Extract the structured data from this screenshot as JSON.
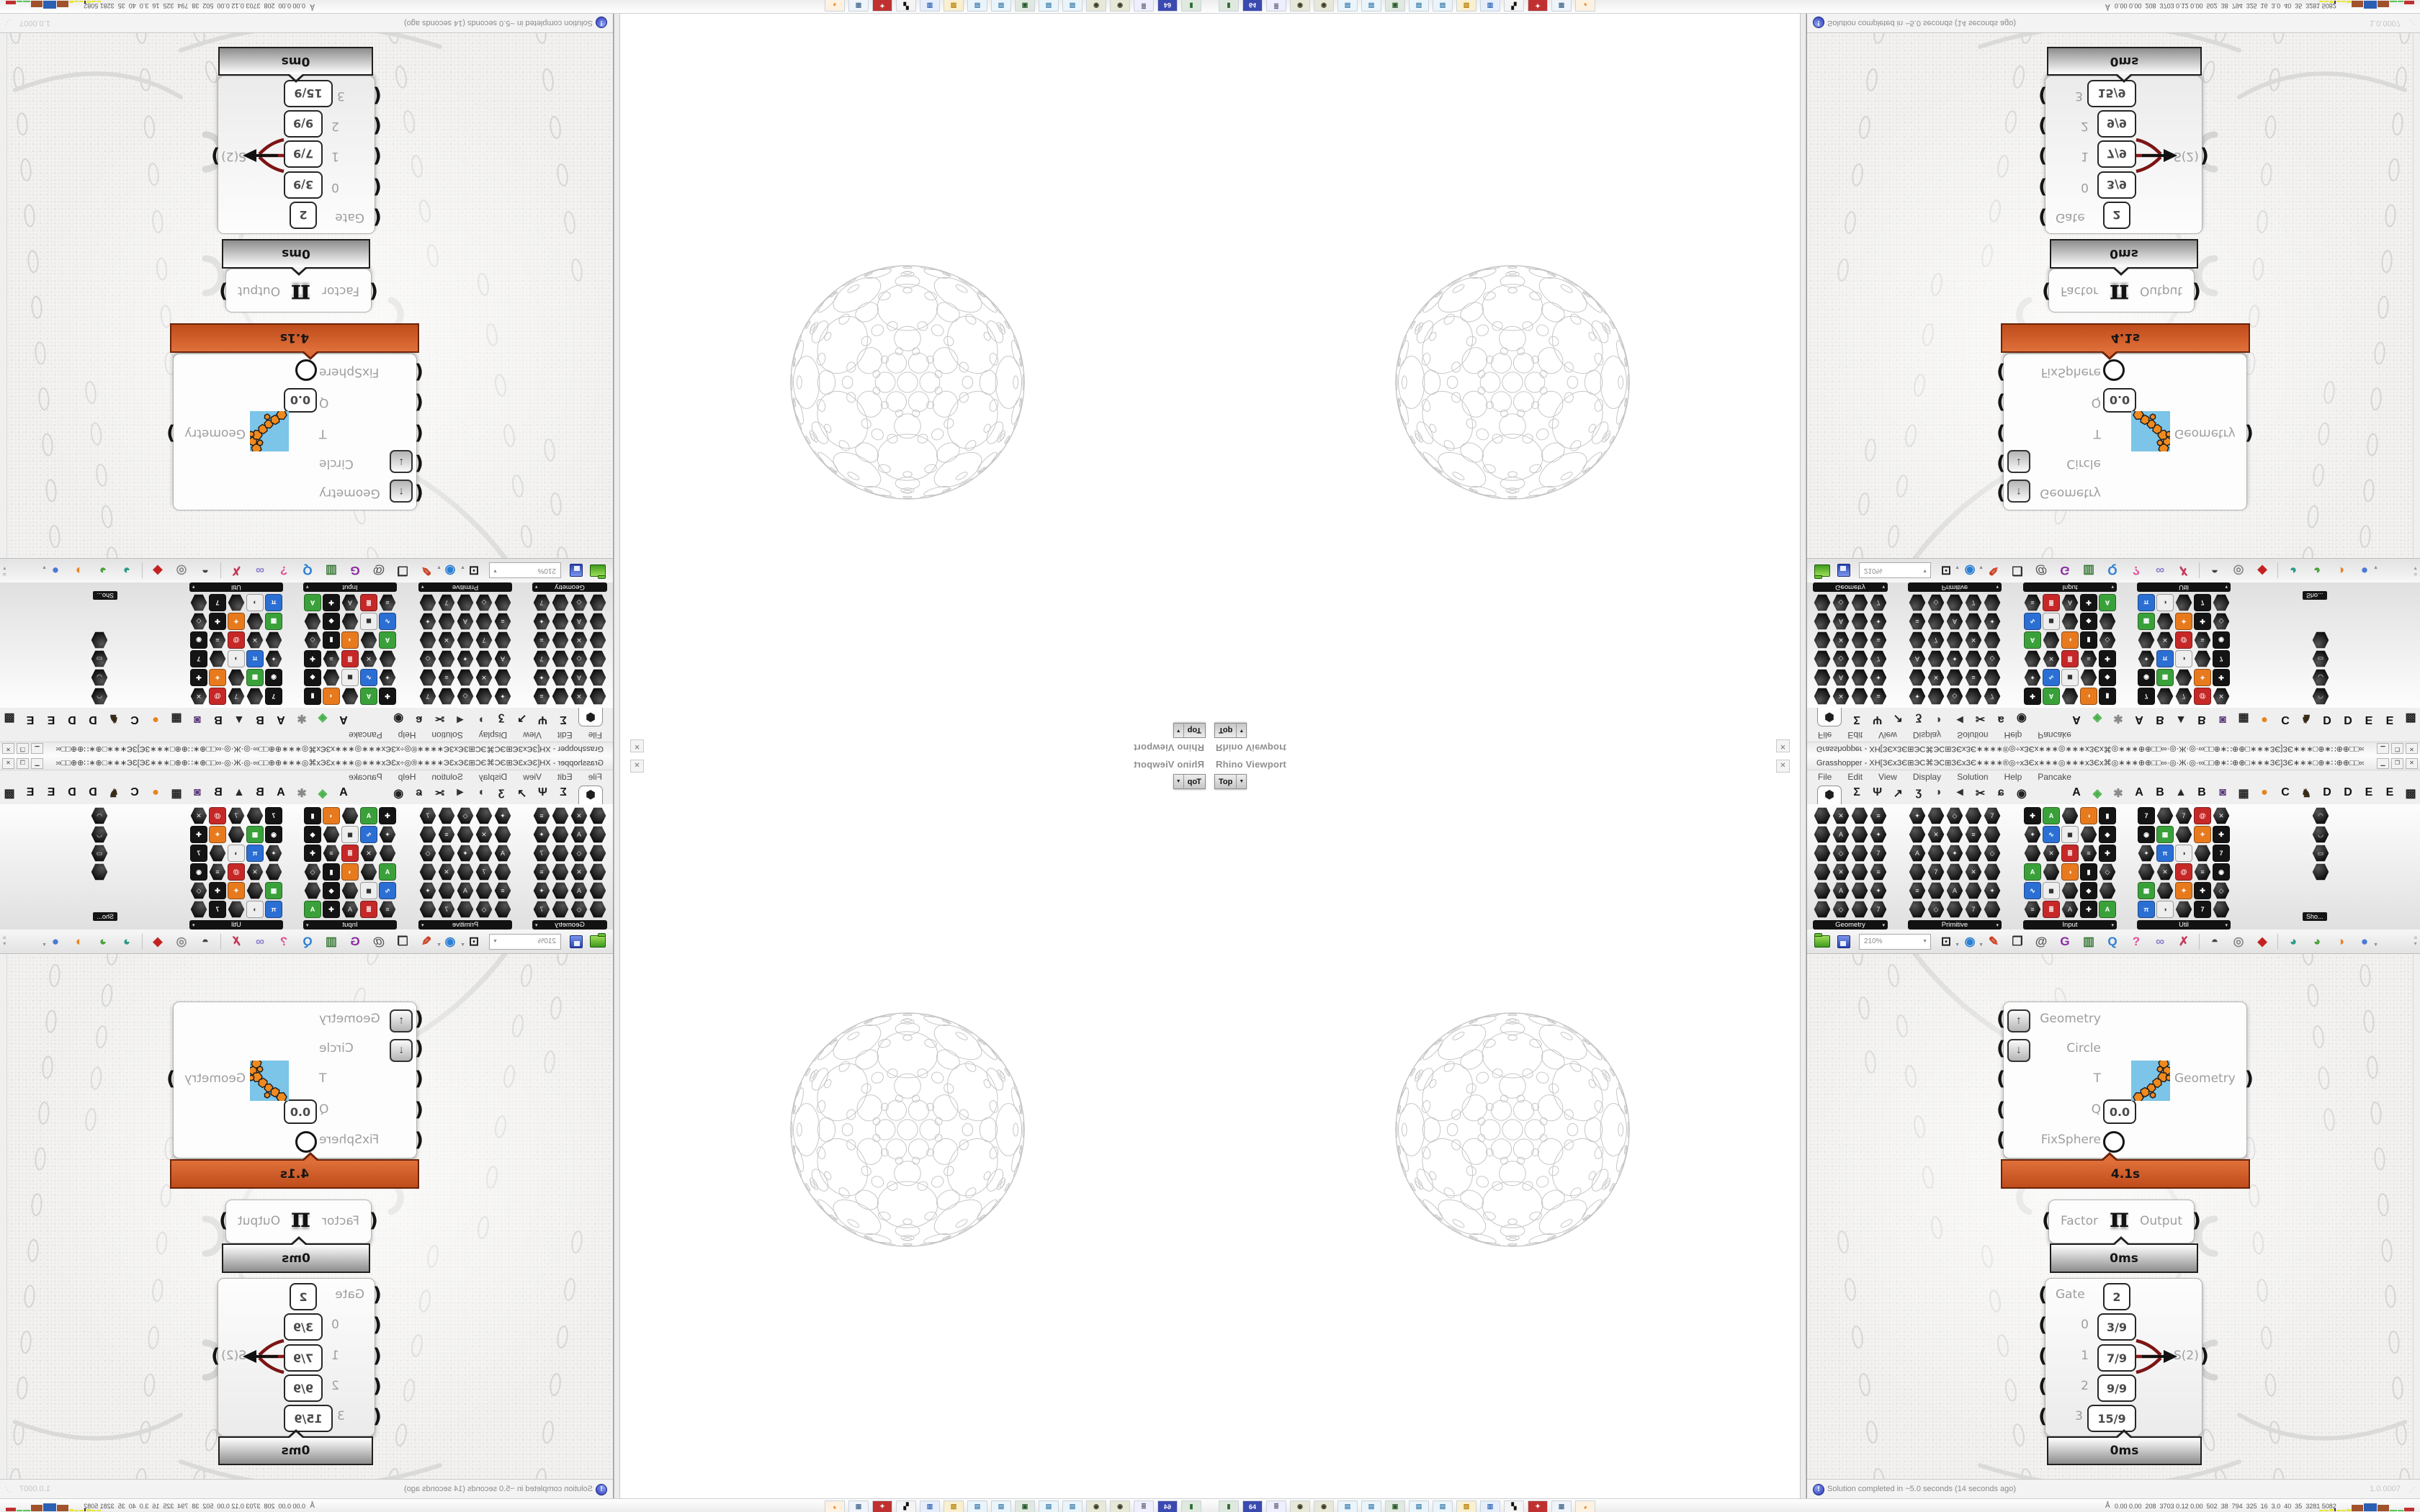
{
  "rhino": {
    "title": "Rhino Viewport",
    "projection_button": "Top",
    "close_glyph": "✕",
    "dropdown_glyph": "▼"
  },
  "grasshopper": {
    "title": "Grasshopper - XH[ЗЄxЗЄ⊞ЭC⌘ЭC⊞ЗЄxЗЄ∗∗∗∗®◎÷xЗЄx∗∗∗◎∗∗∗xЗЄx⌘◎∗∗∗⊕⊕□□∞·◎·Ж·◎·∞□□⊕∗∷⊕⊕□∗∗∗ЗЄ]ЗЄ∗∗∗□⊕∗∷⊕⊕□□∞·◎·Ж·◎·∞□□⊕∗®◎÷xЗЄx∗∗∗◎∗∗∗...",
    "window_buttons": {
      "minimize": "▁",
      "maximize": "❐",
      "close": "✕"
    },
    "menu": [
      "File",
      "Edit",
      "View",
      "Display",
      "Solution",
      "Help",
      "Pancake"
    ],
    "selected_tab_glyph": "⬢",
    "param_tab_icons": [
      {
        "name": "maths-tab-icon",
        "glyph": "Σ",
        "color": "#222"
      },
      {
        "name": "sets-tab-icon",
        "glyph": "Ψ",
        "color": "#222"
      },
      {
        "name": "vector-tab-icon",
        "glyph": "↗",
        "color": "#222"
      },
      {
        "name": "curve-tab-icon",
        "glyph": "ʒ",
        "color": "#222"
      },
      {
        "name": "surface-tab-icon",
        "glyph": "◗",
        "color": "#3b3b3b"
      },
      {
        "name": "mesh-tab-icon",
        "glyph": "◄",
        "color": "#333"
      },
      {
        "name": "intersect-tab-icon",
        "glyph": "✂",
        "color": "#222"
      },
      {
        "name": "transform-tab-icon",
        "glyph": "ɕ",
        "color": "#222"
      },
      {
        "name": "display-tab-icon",
        "glyph": "◉",
        "color": "#222"
      }
    ],
    "plugin_tab_icons": [
      {
        "name": "plugin-tab-a1",
        "glyph": "A",
        "color": "#111"
      },
      {
        "name": "plugin-tab-leaf",
        "glyph": "◈",
        "color": "#49b049"
      },
      {
        "name": "plugin-tab-flower",
        "glyph": "✱",
        "color": "#8a8a8a"
      },
      {
        "name": "plugin-tab-a2",
        "glyph": "A",
        "color": "#111"
      },
      {
        "name": "plugin-tab-b1",
        "glyph": "B",
        "color": "#111"
      },
      {
        "name": "plugin-tab-mountain",
        "glyph": "▲",
        "color": "#2a2a2a"
      },
      {
        "name": "plugin-tab-b2",
        "glyph": "B",
        "color": "#111"
      },
      {
        "name": "plugin-tab-shield",
        "glyph": "◙",
        "color": "#5a3a7a"
      },
      {
        "name": "plugin-tab-grid",
        "glyph": "▦",
        "color": "#222"
      },
      {
        "name": "plugin-tab-dot",
        "glyph": "●",
        "color": "#e8821e"
      },
      {
        "name": "plugin-tab-c",
        "glyph": "C",
        "color": "#111"
      },
      {
        "name": "plugin-tab-bird",
        "glyph": "♞",
        "color": "#3a2a1a"
      },
      {
        "name": "plugin-tab-d1",
        "glyph": "D",
        "color": "#111"
      },
      {
        "name": "plugin-tab-d2",
        "glyph": "D",
        "color": "#111"
      },
      {
        "name": "plugin-tab-e1",
        "glyph": "E",
        "color": "#111"
      },
      {
        "name": "plugin-tab-e2",
        "glyph": "E",
        "color": "#111"
      },
      {
        "name": "plugin-tab-checker",
        "glyph": "▩",
        "color": "#222"
      },
      {
        "name": "plugin-tab-e3",
        "glyph": "E",
        "color": "#111"
      }
    ],
    "palette": {
      "groups": [
        {
          "label": "Geometry",
          "cols": 4,
          "rows": 6,
          "style": "dark"
        },
        {
          "label": "Primitive",
          "cols": 5,
          "rows": 6,
          "style": "dark"
        },
        {
          "label": "Input",
          "cols": 5,
          "rows": 6,
          "style": "mixed"
        },
        {
          "label": "Util",
          "cols": 5,
          "rows": 6,
          "style": "mixed"
        }
      ],
      "extra_column_rows": 4,
      "overflow_tooltip": "Sho..."
    },
    "canvas_toolbar": {
      "zoom_value": "210%",
      "icons": [
        {
          "name": "zoom-extents-icon",
          "glyph": "⊡",
          "color": "#1a1a1a",
          "caret": true
        },
        {
          "name": "preview-eye-icon",
          "glyph": "◉",
          "color": "#2a7fd4",
          "caret": true
        },
        {
          "name": "sketch-pen-icon",
          "glyph": "✎",
          "color": "#cc3a1a"
        },
        {
          "name": "bake-icon",
          "glyph": "❒",
          "color": "#2a2a2a"
        },
        {
          "name": "cluster-icon",
          "glyph": "@",
          "color": "#555"
        },
        {
          "name": "gha-assembly-icon",
          "glyph": "G",
          "color": "#8a2aa0"
        },
        {
          "name": "export-view-icon",
          "glyph": "▥",
          "color": "#3a7a3a"
        },
        {
          "name": "finder-icon",
          "glyph": "Q",
          "color": "#2a7fd4"
        },
        {
          "name": "unknown-bag-icon",
          "glyph": "?",
          "color": "#e0519a"
        },
        {
          "name": "galapagos-icon",
          "glyph": "∞",
          "color": "#8a7ad0"
        },
        {
          "name": "crossing-wires-icon",
          "glyph": "✗",
          "color": "#c43a5a"
        },
        {
          "name": "preview-off-icon",
          "glyph": "◓",
          "color": "#444",
          "sep": true
        },
        {
          "name": "preview-wireframe-icon",
          "glyph": "◎",
          "color": "#888"
        },
        {
          "name": "preview-shaded-icon",
          "glyph": "◆",
          "color": "#c42222"
        },
        {
          "name": "ball-teal-icon",
          "glyph": "◕",
          "color": "#2a9a8a",
          "sep": true
        },
        {
          "name": "ball-green-icon",
          "glyph": "◕",
          "color": "#4aa33a"
        },
        {
          "name": "ball-orange-icon",
          "glyph": "◑",
          "color": "#e8821e"
        },
        {
          "name": "ball-blue-icon",
          "glyph": "●",
          "color": "#4a7ad4",
          "caret": true
        }
      ]
    },
    "components": {
      "fixsphere": {
        "inputs": [
          "Geometry",
          "Circle",
          "T",
          "Q",
          "FixSphere"
        ],
        "q_value": "0.0",
        "output": "Geometry",
        "runtime": "4.1s"
      },
      "pi": {
        "input": "Factor",
        "symbol": "π",
        "output": "Output",
        "runtime": "0ms"
      },
      "stream_gate": {
        "gate_label": "Gate",
        "gate_value": "2",
        "rows": [
          {
            "index": "0",
            "value": "3/9"
          },
          {
            "index": "1",
            "value": "7/9"
          },
          {
            "index": "2",
            "value": "9/9"
          },
          {
            "index": "3",
            "value": "15/9"
          }
        ],
        "output": "S(2)",
        "runtime": "0ms"
      }
    },
    "status_bar": {
      "icon_glyph": "!",
      "message": "Solution completed in ~5.0 seconds (14 seconds ago)",
      "version": "1.0.0007"
    }
  },
  "taskbar": {
    "person_glyph": "Å",
    "stats": "0.00 0.00  208  3703 0.12 0.00  502  38  794  325  16  3.0  40  35  3281 5082",
    "icons": [
      {
        "name": "console-icon",
        "glyph": "▮",
        "color": "#2d6a2d",
        "bg": "#dfe9df"
      },
      {
        "name": "floppy64-icon",
        "glyph": "64",
        "color": "#fff",
        "bg": "#3a4ab0"
      },
      {
        "name": "scroll-icon",
        "glyph": "≣",
        "color": "#667",
        "bg": "#eef"
      },
      {
        "name": "seal-icon",
        "glyph": "◉",
        "color": "#3a3a22",
        "bg": "#e8e8d8"
      },
      {
        "name": "seal2-icon",
        "glyph": "◉",
        "color": "#3a3a22",
        "bg": "#e8e8d8"
      },
      {
        "name": "notepad-icon",
        "glyph": "▤",
        "color": "#4a88b0",
        "bg": "#eaf4fb"
      },
      {
        "name": "notepad2-icon",
        "glyph": "▤",
        "color": "#4a88b0",
        "bg": "#eaf4fb"
      },
      {
        "name": "remote-desktop-icon",
        "glyph": "▣",
        "color": "#2a5a2a",
        "bg": "#e0e8e0"
      },
      {
        "name": "notepad3-icon",
        "glyph": "▤",
        "color": "#4a88b0",
        "bg": "#eaf4fb"
      },
      {
        "name": "notepad4-icon",
        "glyph": "▤",
        "color": "#4a88b0",
        "bg": "#eaf4fb"
      },
      {
        "name": "folder-icon",
        "glyph": "▨",
        "color": "#b8860b",
        "bg": "#faf0d0"
      },
      {
        "name": "computer-icon",
        "glyph": "▥",
        "color": "#3a6ab8",
        "bg": "#e6eefc"
      },
      {
        "name": "checker-icon",
        "glyph": "▚",
        "color": "#111",
        "bg": "#f4f4f4"
      },
      {
        "name": "badge-icon",
        "glyph": "✦",
        "color": "#fff",
        "bg": "#c03030"
      },
      {
        "name": "calculator-icon",
        "glyph": "▦",
        "color": "#5a7a9a",
        "bg": "#eef4fa"
      },
      {
        "name": "firefox-icon",
        "glyph": "◕",
        "color": "#e8821e",
        "bg": "#fdf2e2"
      }
    ]
  },
  "colors": {
    "runtime_orange": "#bf4c1b",
    "runtime_orange_light": "#e0703a",
    "runtime_border": "#6b2407",
    "canvas_bg": "#f2f1ef",
    "ghost_stroke": "#d4d4d4",
    "sphere_stroke": "#c7c7c7",
    "label_gray": "#9e9e9e"
  }
}
